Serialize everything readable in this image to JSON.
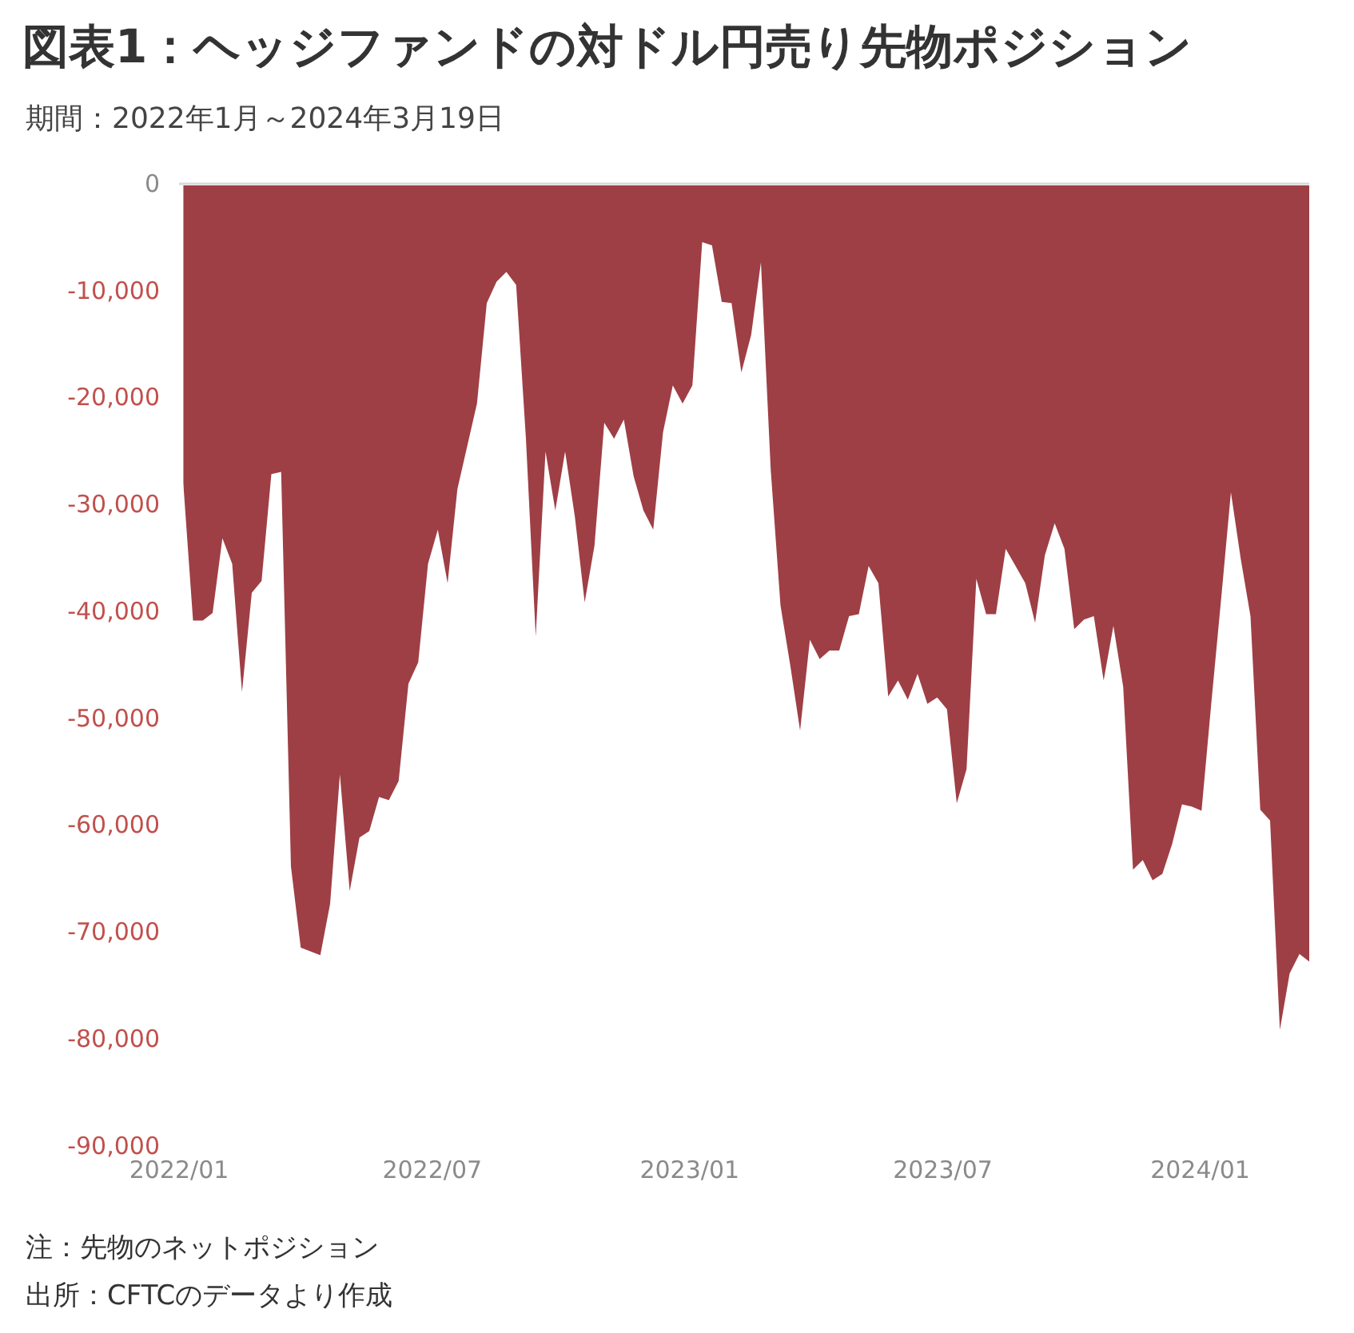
{
  "chart_data": {
    "type": "area",
    "title": "図表1：ヘッジファンドの対ドル円売り先物ポジション",
    "subtitle": "期間：2022年1月～2024年3月19日",
    "annotations": [
      "注：先物のネットポジション",
      "出所：CFTCのデータより作成"
    ],
    "color": "#9e3f45",
    "x": [
      "2022-01-04",
      "2022-01-11",
      "2022-01-18",
      "2022-01-25",
      "2022-02-01",
      "2022-02-08",
      "2022-02-15",
      "2022-02-22",
      "2022-03-01",
      "2022-03-08",
      "2022-03-15",
      "2022-03-22",
      "2022-03-29",
      "2022-04-12",
      "2022-04-19",
      "2022-04-26",
      "2022-05-03",
      "2022-05-10",
      "2022-05-17",
      "2022-05-24",
      "2022-05-31",
      "2022-06-07",
      "2022-06-14",
      "2022-06-21",
      "2022-06-28",
      "2022-07-05",
      "2022-07-12",
      "2022-07-19",
      "2022-08-02",
      "2022-08-09",
      "2022-08-16",
      "2022-08-23",
      "2022-08-30",
      "2022-09-06",
      "2022-09-13",
      "2022-09-20",
      "2022-09-27",
      "2022-10-04",
      "2022-10-11",
      "2022-10-18",
      "2022-10-25",
      "2022-11-01",
      "2022-11-08",
      "2022-11-15",
      "2022-11-22",
      "2022-11-29",
      "2022-12-06",
      "2022-12-13",
      "2022-12-20",
      "2022-12-27",
      "2023-01-03",
      "2023-01-10",
      "2023-01-17",
      "2023-01-24",
      "2023-01-31",
      "2023-02-07",
      "2023-02-14",
      "2023-02-21",
      "2023-02-28",
      "2023-03-07",
      "2023-03-14",
      "2023-03-21",
      "2023-03-28",
      "2023-04-04",
      "2023-04-11",
      "2023-04-18",
      "2023-04-25",
      "2023-05-02",
      "2023-05-09",
      "2023-05-16",
      "2023-05-23",
      "2023-05-30",
      "2023-06-06",
      "2023-06-13",
      "2023-06-20",
      "2023-06-27",
      "2023-07-04",
      "2023-07-11",
      "2023-07-18",
      "2023-07-25",
      "2023-08-01",
      "2023-08-08",
      "2023-08-15",
      "2023-08-29",
      "2023-09-05",
      "2023-09-12",
      "2023-09-19",
      "2023-09-26",
      "2023-10-03",
      "2023-10-10",
      "2023-10-17",
      "2023-10-24",
      "2023-10-31",
      "2023-11-07",
      "2023-11-14",
      "2023-11-21",
      "2023-11-28",
      "2023-12-05",
      "2023-12-12",
      "2023-12-19",
      "2023-12-26",
      "2024-01-02",
      "2024-01-09",
      "2024-01-16",
      "2024-01-23",
      "2024-01-30",
      "2024-02-06",
      "2024-02-13",
      "2024-02-20",
      "2024-02-27",
      "2024-03-05",
      "2024-03-12",
      "2024-03-19"
    ],
    "values": [
      -27800,
      -40700,
      -40700,
      -40000,
      -33000,
      -35400,
      -47400,
      -38100,
      -37000,
      -27000,
      -26800,
      -63700,
      -71300,
      -72000,
      -67200,
      -55100,
      -66000,
      -61000,
      -60400,
      -57200,
      -57500,
      -55700,
      -46600,
      -44600,
      -35400,
      -32200,
      -37200,
      -28400,
      -20400,
      -11000,
      -9000,
      -8100,
      -9300,
      -23700,
      -42200,
      -24900,
      -30400,
      -24900,
      -31000,
      -39000,
      -33700,
      -22200,
      -23700,
      -21900,
      -27200,
      -30400,
      -32200,
      -23100,
      -18700,
      -20400,
      -18700,
      -5300,
      -5600,
      -10900,
      -11000,
      -17500,
      -14000,
      -7200,
      -26600,
      -39300,
      -44900,
      -51000,
      -42500,
      -44300,
      -43500,
      -43500,
      -40300,
      -40100,
      -35600,
      -37200,
      -47800,
      -46300,
      -48100,
      -45700,
      -48500,
      -47900,
      -49000,
      -57800,
      -54600,
      -36800,
      -40100,
      -40100,
      -34000,
      -37200,
      -40900,
      -34600,
      -31600,
      -34000,
      -41500,
      -40600,
      -40300,
      -46300,
      -41200,
      -46900,
      -64000,
      -63100,
      -65000,
      -64400,
      -61600,
      -57900,
      -58100,
      -58500,
      -48400,
      -38700,
      -28700,
      -34900,
      -40300,
      -58400,
      -59400,
      -79000,
      -73700,
      -71900,
      -72600
    ],
    "xlim": [
      "2022-01",
      "2024-03-19"
    ],
    "xticks": [
      {
        "value": "2022-01",
        "label": "2022/01"
      },
      {
        "value": "2022-07",
        "label": "2022/07"
      },
      {
        "value": "2023-01",
        "label": "2023/01"
      },
      {
        "value": "2023-07",
        "label": "2023/07"
      },
      {
        "value": "2024-01",
        "label": "2024/01"
      }
    ],
    "ylim": [
      -90000,
      0
    ],
    "yticks": [
      {
        "value": 0,
        "label": "0"
      },
      {
        "value": -10000,
        "label": "-10,000"
      },
      {
        "value": -20000,
        "label": "-20,000"
      },
      {
        "value": -30000,
        "label": "-30,000"
      },
      {
        "value": -40000,
        "label": "-40,000"
      },
      {
        "value": -50000,
        "label": "-50,000"
      },
      {
        "value": -60000,
        "label": "-60,000"
      },
      {
        "value": -70000,
        "label": "-70,000"
      },
      {
        "value": -80000,
        "label": "-80,000"
      },
      {
        "value": -90000,
        "label": "-90,000"
      }
    ],
    "grid": false,
    "legend": false
  }
}
